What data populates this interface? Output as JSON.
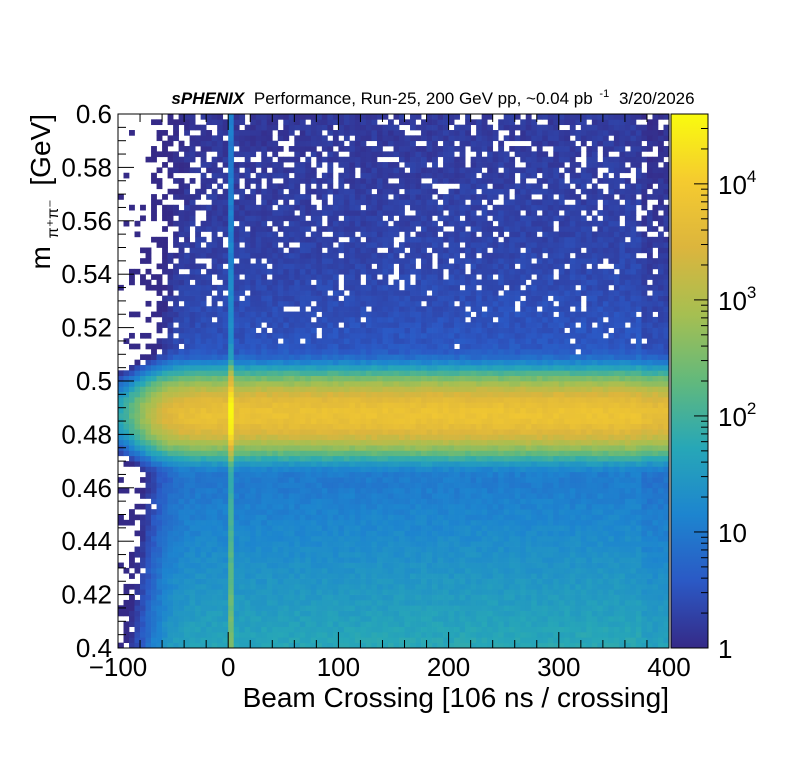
{
  "chart_data": {
    "type": "heatmap",
    "title": {
      "brand": "sPHENIX",
      "rest_before_sup": "Performance, Run-25, 200 GeV pp, ~0.04 pb",
      "sup": "-1",
      "rest_after_sup": "3/20/2026"
    },
    "xlabel": "Beam Crossing [106 ns / crossing]",
    "ylabel": {
      "main": "m",
      "sub": "π⁺π⁻",
      "unit": "[GeV]"
    },
    "xlim": [
      -100,
      400
    ],
    "ylim": [
      0.4,
      0.6
    ],
    "x_ticks": [
      {
        "value": -100,
        "label": "−100"
      },
      {
        "value": 0,
        "label": "0"
      },
      {
        "value": 100,
        "label": "100"
      },
      {
        "value": 200,
        "label": "200"
      },
      {
        "value": 300,
        "label": "300"
      },
      {
        "value": 400,
        "label": "400"
      }
    ],
    "y_ticks": [
      {
        "value": 0.4,
        "label": "0.4"
      },
      {
        "value": 0.42,
        "label": "0.42"
      },
      {
        "value": 0.44,
        "label": "0.44"
      },
      {
        "value": 0.46,
        "label": "0.46"
      },
      {
        "value": 0.48,
        "label": "0.48"
      },
      {
        "value": 0.5,
        "label": "0.5"
      },
      {
        "value": 0.52,
        "label": "0.52"
      },
      {
        "value": 0.54,
        "label": "0.54"
      },
      {
        "value": 0.56,
        "label": "0.56"
      },
      {
        "value": 0.58,
        "label": "0.58"
      },
      {
        "value": 0.6,
        "label": "0.6"
      }
    ],
    "z_scale": "log",
    "zlim": [
      1,
      40000
    ],
    "z_ticks": [
      {
        "value": 1,
        "base": "1",
        "exp": ""
      },
      {
        "value": 10,
        "base": "10",
        "exp": ""
      },
      {
        "value": 100,
        "base": "10",
        "exp": "2"
      },
      {
        "value": 1000,
        "base": "10",
        "exp": "3"
      },
      {
        "value": 10000,
        "base": "10",
        "exp": "4"
      }
    ],
    "colormap": [
      "#352a87",
      "#2b59c5",
      "#1d85cf",
      "#27a7b7",
      "#62b97c",
      "#a6bf51",
      "#dcb53d",
      "#f5cb2f",
      "#f9fb0e"
    ],
    "peak_mass": 0.4875,
    "mass_width": 0.0055,
    "prompt_crossing": 0,
    "x_bins": 100,
    "y_bins": 100,
    "legend": "color bar at right"
  }
}
